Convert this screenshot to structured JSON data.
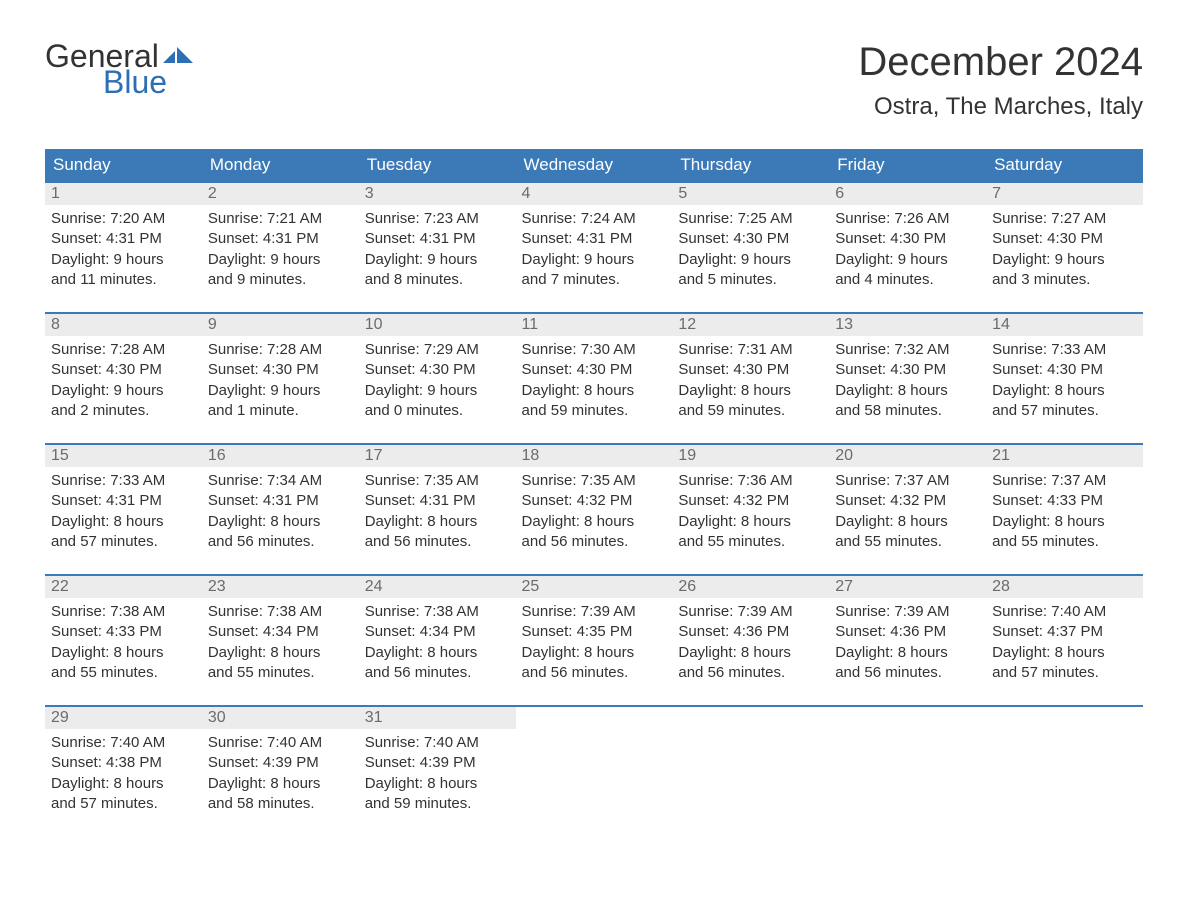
{
  "logo": {
    "line1": "General",
    "line2": "Blue"
  },
  "title": "December 2024",
  "location": "Ostra, The Marches, Italy",
  "colors": {
    "header_bg": "#3b79b7",
    "header_text": "#ffffff",
    "daynum_bg": "#ececec",
    "daynum_text": "#6b6b6b",
    "body_text": "#333333",
    "week_border": "#3b79b7",
    "logo_blue": "#2d6fb5",
    "background": "#ffffff"
  },
  "typography": {
    "title_fontsize": 40,
    "location_fontsize": 24,
    "th_fontsize": 17,
    "daynum_fontsize": 16,
    "content_fontsize": 15,
    "logo_fontsize": 32
  },
  "weekdays": [
    "Sunday",
    "Monday",
    "Tuesday",
    "Wednesday",
    "Thursday",
    "Friday",
    "Saturday"
  ],
  "weeks": [
    [
      {
        "n": "1",
        "sr": "Sunrise: 7:20 AM",
        "ss": "Sunset: 4:31 PM",
        "d1": "Daylight: 9 hours",
        "d2": "and 11 minutes."
      },
      {
        "n": "2",
        "sr": "Sunrise: 7:21 AM",
        "ss": "Sunset: 4:31 PM",
        "d1": "Daylight: 9 hours",
        "d2": "and 9 minutes."
      },
      {
        "n": "3",
        "sr": "Sunrise: 7:23 AM",
        "ss": "Sunset: 4:31 PM",
        "d1": "Daylight: 9 hours",
        "d2": "and 8 minutes."
      },
      {
        "n": "4",
        "sr": "Sunrise: 7:24 AM",
        "ss": "Sunset: 4:31 PM",
        "d1": "Daylight: 9 hours",
        "d2": "and 7 minutes."
      },
      {
        "n": "5",
        "sr": "Sunrise: 7:25 AM",
        "ss": "Sunset: 4:30 PM",
        "d1": "Daylight: 9 hours",
        "d2": "and 5 minutes."
      },
      {
        "n": "6",
        "sr": "Sunrise: 7:26 AM",
        "ss": "Sunset: 4:30 PM",
        "d1": "Daylight: 9 hours",
        "d2": "and 4 minutes."
      },
      {
        "n": "7",
        "sr": "Sunrise: 7:27 AM",
        "ss": "Sunset: 4:30 PM",
        "d1": "Daylight: 9 hours",
        "d2": "and 3 minutes."
      }
    ],
    [
      {
        "n": "8",
        "sr": "Sunrise: 7:28 AM",
        "ss": "Sunset: 4:30 PM",
        "d1": "Daylight: 9 hours",
        "d2": "and 2 minutes."
      },
      {
        "n": "9",
        "sr": "Sunrise: 7:28 AM",
        "ss": "Sunset: 4:30 PM",
        "d1": "Daylight: 9 hours",
        "d2": "and 1 minute."
      },
      {
        "n": "10",
        "sr": "Sunrise: 7:29 AM",
        "ss": "Sunset: 4:30 PM",
        "d1": "Daylight: 9 hours",
        "d2": "and 0 minutes."
      },
      {
        "n": "11",
        "sr": "Sunrise: 7:30 AM",
        "ss": "Sunset: 4:30 PM",
        "d1": "Daylight: 8 hours",
        "d2": "and 59 minutes."
      },
      {
        "n": "12",
        "sr": "Sunrise: 7:31 AM",
        "ss": "Sunset: 4:30 PM",
        "d1": "Daylight: 8 hours",
        "d2": "and 59 minutes."
      },
      {
        "n": "13",
        "sr": "Sunrise: 7:32 AM",
        "ss": "Sunset: 4:30 PM",
        "d1": "Daylight: 8 hours",
        "d2": "and 58 minutes."
      },
      {
        "n": "14",
        "sr": "Sunrise: 7:33 AM",
        "ss": "Sunset: 4:30 PM",
        "d1": "Daylight: 8 hours",
        "d2": "and 57 minutes."
      }
    ],
    [
      {
        "n": "15",
        "sr": "Sunrise: 7:33 AM",
        "ss": "Sunset: 4:31 PM",
        "d1": "Daylight: 8 hours",
        "d2": "and 57 minutes."
      },
      {
        "n": "16",
        "sr": "Sunrise: 7:34 AM",
        "ss": "Sunset: 4:31 PM",
        "d1": "Daylight: 8 hours",
        "d2": "and 56 minutes."
      },
      {
        "n": "17",
        "sr": "Sunrise: 7:35 AM",
        "ss": "Sunset: 4:31 PM",
        "d1": "Daylight: 8 hours",
        "d2": "and 56 minutes."
      },
      {
        "n": "18",
        "sr": "Sunrise: 7:35 AM",
        "ss": "Sunset: 4:32 PM",
        "d1": "Daylight: 8 hours",
        "d2": "and 56 minutes."
      },
      {
        "n": "19",
        "sr": "Sunrise: 7:36 AM",
        "ss": "Sunset: 4:32 PM",
        "d1": "Daylight: 8 hours",
        "d2": "and 55 minutes."
      },
      {
        "n": "20",
        "sr": "Sunrise: 7:37 AM",
        "ss": "Sunset: 4:32 PM",
        "d1": "Daylight: 8 hours",
        "d2": "and 55 minutes."
      },
      {
        "n": "21",
        "sr": "Sunrise: 7:37 AM",
        "ss": "Sunset: 4:33 PM",
        "d1": "Daylight: 8 hours",
        "d2": "and 55 minutes."
      }
    ],
    [
      {
        "n": "22",
        "sr": "Sunrise: 7:38 AM",
        "ss": "Sunset: 4:33 PM",
        "d1": "Daylight: 8 hours",
        "d2": "and 55 minutes."
      },
      {
        "n": "23",
        "sr": "Sunrise: 7:38 AM",
        "ss": "Sunset: 4:34 PM",
        "d1": "Daylight: 8 hours",
        "d2": "and 55 minutes."
      },
      {
        "n": "24",
        "sr": "Sunrise: 7:38 AM",
        "ss": "Sunset: 4:34 PM",
        "d1": "Daylight: 8 hours",
        "d2": "and 56 minutes."
      },
      {
        "n": "25",
        "sr": "Sunrise: 7:39 AM",
        "ss": "Sunset: 4:35 PM",
        "d1": "Daylight: 8 hours",
        "d2": "and 56 minutes."
      },
      {
        "n": "26",
        "sr": "Sunrise: 7:39 AM",
        "ss": "Sunset: 4:36 PM",
        "d1": "Daylight: 8 hours",
        "d2": "and 56 minutes."
      },
      {
        "n": "27",
        "sr": "Sunrise: 7:39 AM",
        "ss": "Sunset: 4:36 PM",
        "d1": "Daylight: 8 hours",
        "d2": "and 56 minutes."
      },
      {
        "n": "28",
        "sr": "Sunrise: 7:40 AM",
        "ss": "Sunset: 4:37 PM",
        "d1": "Daylight: 8 hours",
        "d2": "and 57 minutes."
      }
    ],
    [
      {
        "n": "29",
        "sr": "Sunrise: 7:40 AM",
        "ss": "Sunset: 4:38 PM",
        "d1": "Daylight: 8 hours",
        "d2": "and 57 minutes."
      },
      {
        "n": "30",
        "sr": "Sunrise: 7:40 AM",
        "ss": "Sunset: 4:39 PM",
        "d1": "Daylight: 8 hours",
        "d2": "and 58 minutes."
      },
      {
        "n": "31",
        "sr": "Sunrise: 7:40 AM",
        "ss": "Sunset: 4:39 PM",
        "d1": "Daylight: 8 hours",
        "d2": "and 59 minutes."
      },
      null,
      null,
      null,
      null
    ]
  ]
}
